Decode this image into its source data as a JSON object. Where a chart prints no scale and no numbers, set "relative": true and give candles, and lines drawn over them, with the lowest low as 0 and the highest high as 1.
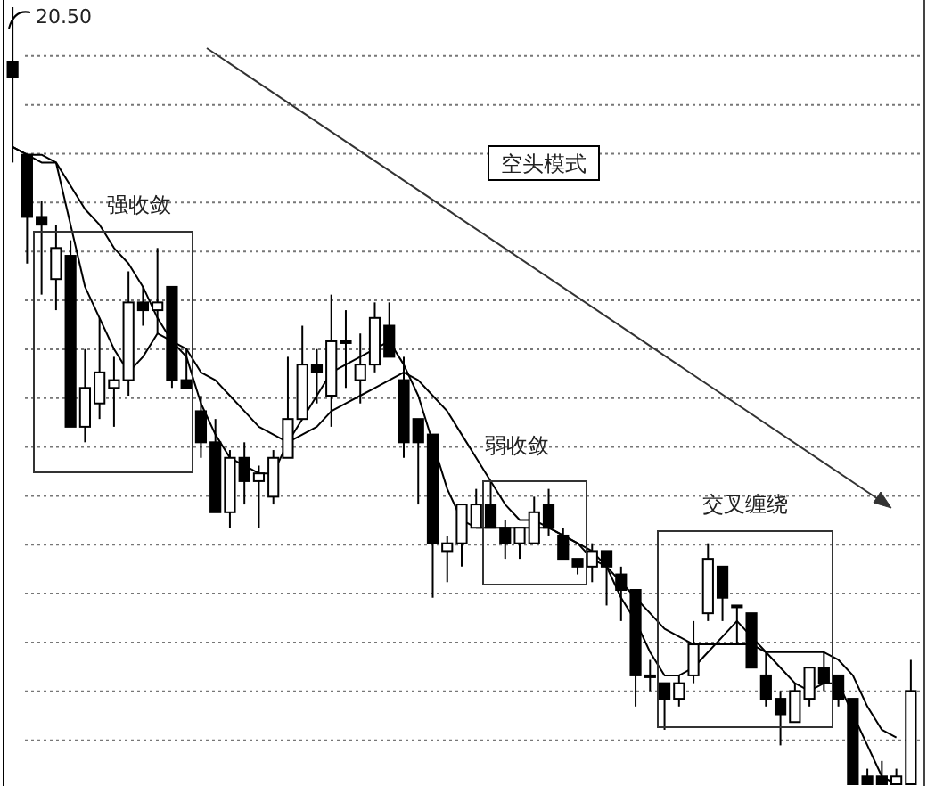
{
  "chart_data": {
    "type": "candlestick",
    "relative": true,
    "grid": "y",
    "categories": [
      null,
      null,
      null,
      null,
      null,
      null,
      null,
      null,
      null,
      null,
      null,
      null,
      null,
      null,
      null,
      null,
      null,
      null,
      null,
      null,
      null,
      null,
      null,
      null,
      null,
      null,
      null,
      null,
      null,
      null,
      null,
      null,
      null,
      null,
      null,
      null,
      null,
      null,
      null,
      null,
      null,
      null,
      null,
      null,
      null,
      null,
      null,
      null,
      null,
      null,
      null,
      null,
      null,
      null,
      null,
      null,
      null,
      null,
      null,
      null,
      null,
      null,
      null
    ],
    "ohlc": [
      [
        0.93,
        1.0,
        0.8,
        0.91
      ],
      [
        0.81,
        0.81,
        0.67,
        0.73
      ],
      [
        0.73,
        0.75,
        0.63,
        0.72
      ],
      [
        0.65,
        0.72,
        0.61,
        0.69
      ],
      [
        0.68,
        0.7,
        0.46,
        0.46
      ],
      [
        0.46,
        0.56,
        0.44,
        0.51
      ],
      [
        0.49,
        0.6,
        0.47,
        0.53
      ],
      [
        0.51,
        0.55,
        0.46,
        0.52
      ],
      [
        0.52,
        0.66,
        0.5,
        0.62
      ],
      [
        0.62,
        0.64,
        0.59,
        0.61
      ],
      [
        0.61,
        0.69,
        0.58,
        0.62
      ],
      [
        0.64,
        0.64,
        0.51,
        0.52
      ],
      [
        0.52,
        0.56,
        0.51,
        0.51
      ],
      [
        0.48,
        0.5,
        0.42,
        0.44
      ],
      [
        0.44,
        0.47,
        0.35,
        0.35
      ],
      [
        0.35,
        0.43,
        0.33,
        0.42
      ],
      [
        0.42,
        0.44,
        0.36,
        0.39
      ],
      [
        0.39,
        0.41,
        0.33,
        0.4
      ],
      [
        0.37,
        0.43,
        0.36,
        0.42
      ],
      [
        0.42,
        0.55,
        0.42,
        0.47
      ],
      [
        0.47,
        0.59,
        0.47,
        0.54
      ],
      [
        0.54,
        0.56,
        0.49,
        0.53
      ],
      [
        0.5,
        0.63,
        0.46,
        0.57
      ],
      [
        0.57,
        0.61,
        0.51,
        0.57
      ],
      [
        0.52,
        0.58,
        0.49,
        0.54
      ],
      [
        0.54,
        0.62,
        0.53,
        0.6
      ],
      [
        0.59,
        0.62,
        0.55,
        0.55
      ],
      [
        0.52,
        0.55,
        0.42,
        0.44
      ],
      [
        0.47,
        0.47,
        0.36,
        0.44
      ],
      [
        0.45,
        0.45,
        0.24,
        0.31
      ],
      [
        0.3,
        0.32,
        0.26,
        0.31
      ],
      [
        0.31,
        0.36,
        0.28,
        0.36
      ],
      [
        0.33,
        0.38,
        0.33,
        0.36
      ],
      [
        0.36,
        0.39,
        0.33,
        0.33
      ],
      [
        0.33,
        0.34,
        0.29,
        0.31
      ],
      [
        0.31,
        0.33,
        0.29,
        0.33
      ],
      [
        0.31,
        0.37,
        0.31,
        0.35
      ],
      [
        0.36,
        0.38,
        0.32,
        0.33
      ],
      [
        0.32,
        0.33,
        0.29,
        0.29
      ],
      [
        0.29,
        0.29,
        0.27,
        0.28
      ],
      [
        0.28,
        0.31,
        0.26,
        0.3
      ],
      [
        0.3,
        0.3,
        0.23,
        0.28
      ],
      [
        0.27,
        0.28,
        0.21,
        0.25
      ],
      [
        0.25,
        0.25,
        0.1,
        0.14
      ],
      [
        0.14,
        0.16,
        0.12,
        0.14
      ],
      [
        0.13,
        0.13,
        0.07,
        0.11
      ],
      [
        0.11,
        0.14,
        0.1,
        0.13
      ],
      [
        0.14,
        0.21,
        0.13,
        0.18
      ],
      [
        0.22,
        0.31,
        0.21,
        0.29
      ],
      [
        0.28,
        0.28,
        0.21,
        0.24
      ],
      [
        0.23,
        0.23,
        0.18,
        0.23
      ],
      [
        0.22,
        0.22,
        0.15,
        0.15
      ],
      [
        0.14,
        0.17,
        0.1,
        0.11
      ],
      [
        0.11,
        0.12,
        0.05,
        0.09
      ],
      [
        0.08,
        0.13,
        0.08,
        0.12
      ],
      [
        0.11,
        0.15,
        0.1,
        0.15
      ],
      [
        0.15,
        0.17,
        0.12,
        0.13
      ],
      [
        0.14,
        0.14,
        0.1,
        0.11
      ],
      [
        0.11,
        0.11,
        0.0,
        0.0
      ],
      [
        0.01,
        0.02,
        0.0,
        0.0
      ],
      [
        0.01,
        0.03,
        0.0,
        0.0
      ],
      [
        0.0,
        0.02,
        0.0,
        0.01
      ],
      [
        0.0,
        0.16,
        0.0,
        0.12
      ]
    ],
    "series": [
      {
        "type": "line",
        "color": "#000000",
        "values": [
          0.82,
          0.81,
          0.81,
          0.8,
          0.72,
          0.64,
          0.6,
          0.56,
          0.53,
          0.55,
          0.58,
          0.57,
          0.55,
          0.49,
          0.45,
          0.42,
          0.41,
          0.4,
          0.4,
          0.44,
          0.47,
          0.5,
          0.53,
          0.54,
          0.55,
          0.56,
          0.57,
          0.54,
          0.5,
          0.44,
          0.38,
          0.34,
          0.33,
          0.33,
          0.33,
          0.33,
          0.33,
          0.33,
          0.32,
          0.31,
          0.29,
          0.28,
          0.24,
          0.21,
          0.17,
          0.14,
          0.14,
          0.15,
          0.17,
          0.19,
          0.21,
          0.19,
          0.17,
          0.15,
          0.13,
          0.12,
          0.13,
          0.13,
          0.09,
          0.05,
          0.01,
          0.0,
          null
        ]
      },
      {
        "type": "line",
        "color": "#000000",
        "values": [
          0.82,
          0.81,
          0.8,
          0.8,
          0.77,
          0.74,
          0.72,
          0.69,
          0.67,
          0.64,
          0.6,
          0.57,
          0.56,
          0.53,
          0.52,
          0.5,
          0.48,
          0.46,
          0.45,
          0.44,
          0.45,
          0.46,
          0.48,
          0.49,
          0.5,
          0.51,
          0.52,
          0.53,
          0.52,
          0.5,
          0.48,
          0.45,
          0.42,
          0.39,
          0.36,
          0.34,
          0.34,
          0.33,
          0.32,
          0.31,
          0.3,
          0.28,
          0.26,
          0.24,
          0.22,
          0.2,
          0.19,
          0.18,
          0.18,
          0.18,
          0.18,
          0.18,
          0.17,
          0.17,
          0.17,
          0.17,
          0.17,
          0.16,
          0.14,
          0.1,
          0.07,
          0.06,
          null
        ]
      }
    ],
    "annotations": [
      "20.50",
      "空头模式",
      "强收敛",
      "弱收敛",
      "交叉缠绕"
    ]
  }
}
